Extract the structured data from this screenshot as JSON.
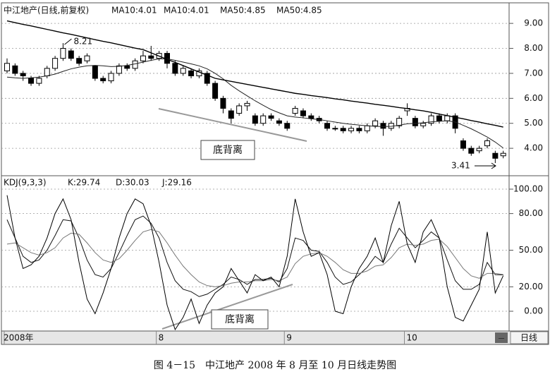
{
  "chart_data": [
    {
      "type": "candlestick",
      "title": "中江地产(日线,前复权)",
      "legend_labels": [
        "MA10:4.01",
        "MA10:4.01",
        "MA50:4.85",
        "MA50:4.85"
      ],
      "categories": [
        "2008年",
        null,
        null,
        null,
        null,
        null,
        null,
        null,
        null,
        null,
        null,
        null,
        null,
        null,
        null,
        null,
        null,
        null,
        null,
        "8",
        null,
        null,
        null,
        null,
        null,
        null,
        null,
        null,
        null,
        null,
        null,
        null,
        null,
        null,
        null,
        "9",
        null,
        null,
        null,
        null,
        null,
        null,
        null,
        null,
        null,
        null,
        null,
        null,
        null,
        null,
        "10",
        null,
        null,
        null,
        null,
        null,
        null,
        null,
        null,
        null,
        null,
        null,
        null
      ],
      "open": [
        7.1,
        7.3,
        7.0,
        6.8,
        6.6,
        6.9,
        7.2,
        7.6,
        7.9,
        7.6,
        7.5,
        7.3,
        6.8,
        6.7,
        7.0,
        7.3,
        7.2,
        7.5,
        7.7,
        7.6,
        7.8,
        7.4,
        7.0,
        7.1,
        6.9,
        7.0,
        6.6,
        6.0,
        5.5,
        5.4,
        5.7,
        5.3,
        5.0,
        5.3,
        5.1,
        5.0,
        5.4,
        5.5,
        5.3,
        5.2,
        5.0,
        4.8,
        4.8,
        4.7,
        4.8,
        4.7,
        4.9,
        5.0,
        4.8,
        4.9,
        5.5,
        5.2,
        4.9,
        5.0,
        5.3,
        5.1,
        5.3,
        4.3,
        4.0,
        3.9,
        4.1,
        3.8,
        3.7
      ],
      "high": [
        7.6,
        7.4,
        7.1,
        6.9,
        6.9,
        7.3,
        7.7,
        8.21,
        8.0,
        7.7,
        7.8,
        7.3,
        6.9,
        7.1,
        7.4,
        7.4,
        7.6,
        7.9,
        8.1,
        7.9,
        7.9,
        7.5,
        7.3,
        7.2,
        7.2,
        7.1,
        6.7,
        6.1,
        5.6,
        5.8,
        5.9,
        5.4,
        5.4,
        5.4,
        5.2,
        5.1,
        5.7,
        5.6,
        5.4,
        5.3,
        5.1,
        4.9,
        4.9,
        4.9,
        4.9,
        5.0,
        5.2,
        5.1,
        5.1,
        5.3,
        5.8,
        5.3,
        5.1,
        5.4,
        5.4,
        5.4,
        5.4,
        4.4,
        4.1,
        4.1,
        4.4,
        3.9,
        3.9
      ],
      "low": [
        7.0,
        6.9,
        6.7,
        6.5,
        6.5,
        6.8,
        7.1,
        7.5,
        7.5,
        7.3,
        7.4,
        6.7,
        6.6,
        6.6,
        6.9,
        7.1,
        7.1,
        7.4,
        7.5,
        7.5,
        7.2,
        6.9,
        6.9,
        6.8,
        6.8,
        6.5,
        5.9,
        5.4,
        5.0,
        5.3,
        5.5,
        4.9,
        4.9,
        5.1,
        4.9,
        4.7,
        5.3,
        5.2,
        5.1,
        5.0,
        4.7,
        4.7,
        4.6,
        4.6,
        4.6,
        4.6,
        4.8,
        4.5,
        4.7,
        4.8,
        5.3,
        4.8,
        4.8,
        4.9,
        5.0,
        5.0,
        4.6,
        3.9,
        3.7,
        3.8,
        4.0,
        3.41,
        3.6
      ],
      "close": [
        7.4,
        7.0,
        6.9,
        6.6,
        6.8,
        7.2,
        7.6,
        8.0,
        7.6,
        7.4,
        7.7,
        6.8,
        6.7,
        7.0,
        7.3,
        7.2,
        7.5,
        7.7,
        7.6,
        7.8,
        7.4,
        7.0,
        7.2,
        6.9,
        7.1,
        6.6,
        6.0,
        5.6,
        5.2,
        5.7,
        5.8,
        5.0,
        5.3,
        5.2,
        5.0,
        4.8,
        5.6,
        5.3,
        5.2,
        5.1,
        4.8,
        4.8,
        4.7,
        4.8,
        4.7,
        4.9,
        5.1,
        4.8,
        5.0,
        5.2,
        5.6,
        4.9,
        5.0,
        5.3,
        5.1,
        5.3,
        4.8,
        4.0,
        3.8,
        4.0,
        4.3,
        3.6,
        3.8
      ],
      "series": [
        {
          "color": "#222",
          "values": [
            6.85,
            6.82,
            6.8,
            6.82,
            6.85,
            6.9,
            6.97,
            7.08,
            7.18,
            7.25,
            7.3,
            7.32,
            7.3,
            7.27,
            7.28,
            7.32,
            7.38,
            7.45,
            7.52,
            7.58,
            7.58,
            7.52,
            7.45,
            7.38,
            7.3,
            7.18,
            7.0,
            6.78,
            6.52,
            6.3,
            6.1,
            5.9,
            5.72,
            5.55,
            5.42,
            5.3,
            5.25,
            5.22,
            5.18,
            5.15,
            5.1,
            5.05,
            5.0,
            4.96,
            4.93,
            4.9,
            4.88,
            4.87,
            4.88,
            4.92,
            4.98,
            5.0,
            5.02,
            5.06,
            5.08,
            5.1,
            5.05,
            4.92,
            4.78,
            4.62,
            4.45,
            4.25,
            4.01
          ]
        },
        {
          "color": "#000",
          "values": [
            9.1,
            9.03,
            8.96,
            8.9,
            8.83,
            8.76,
            8.69,
            8.62,
            8.56,
            8.49,
            8.42,
            8.35,
            8.28,
            8.22,
            8.15,
            8.08,
            8.01,
            7.95,
            7.82,
            7.69,
            7.56,
            7.44,
            7.31,
            7.18,
            7.05,
            6.93,
            6.8,
            6.74,
            6.68,
            6.62,
            6.56,
            6.5,
            6.44,
            6.38,
            6.32,
            6.26,
            6.2,
            6.16,
            6.11,
            6.07,
            6.03,
            5.98,
            5.94,
            5.89,
            5.85,
            5.81,
            5.76,
            5.72,
            5.68,
            5.63,
            5.59,
            5.54,
            5.5,
            5.44,
            5.37,
            5.31,
            5.24,
            5.18,
            5.11,
            5.05,
            4.98,
            4.92,
            4.85
          ]
        }
      ],
      "ylim": [
        2.93,
        9.71
      ],
      "yticks": [
        {
          "value": 4,
          "label": "4.00"
        },
        {
          "value": 5,
          "label": "5.00"
        },
        {
          "value": 6,
          "label": "6.00"
        },
        {
          "value": 7,
          "label": "7.00"
        },
        {
          "value": 8,
          "label": "8.00"
        },
        {
          "value": 9,
          "label": "9.00"
        }
      ],
      "grid": true,
      "annotations": [
        "8.21",
        "3.41",
        "底背离"
      ]
    },
    {
      "type": "line",
      "title": "KDJ(9,3,3)",
      "series": [
        {
          "name": "K:29.74",
          "color": "#111",
          "values": [
            75,
            60,
            45,
            40,
            42,
            50,
            62,
            75,
            74,
            60,
            42,
            30,
            28,
            35,
            48,
            62,
            75,
            78,
            72,
            60,
            40,
            25,
            18,
            16,
            12,
            14,
            18,
            22,
            28,
            26,
            22,
            26,
            26,
            27,
            24,
            35,
            60,
            58,
            50,
            49,
            40,
            28,
            22,
            24,
            30,
            36,
            45,
            40,
            55,
            68,
            60,
            52,
            58,
            65,
            60,
            42,
            25,
            18,
            18,
            22,
            40,
            30,
            29.74
          ]
        },
        {
          "name": "D:30.03",
          "color": "#777",
          "values": [
            55,
            56,
            52,
            48,
            46,
            48,
            52,
            60,
            64,
            63,
            56,
            48,
            42,
            40,
            43,
            50,
            58,
            65,
            67,
            65,
            56,
            46,
            37,
            30,
            24,
            21,
            20,
            21,
            23,
            24,
            24,
            25,
            25,
            26,
            25,
            28,
            39,
            45,
            47,
            48,
            45,
            40,
            34,
            31,
            31,
            33,
            37,
            38,
            44,
            52,
            55,
            54,
            55,
            58,
            59,
            53,
            44,
            35,
            29,
            27,
            31,
            31,
            30.03
          ]
        },
        {
          "name": "J:29.16",
          "color": "#000",
          "values": [
            95,
            60,
            35,
            38,
            45,
            60,
            80,
            92,
            75,
            40,
            10,
            -2,
            15,
            35,
            60,
            80,
            92,
            88,
            70,
            40,
            5,
            -15,
            -5,
            10,
            -10,
            5,
            15,
            20,
            35,
            25,
            15,
            30,
            25,
            28,
            20,
            45,
            92,
            65,
            45,
            48,
            30,
            0,
            -2,
            20,
            35,
            45,
            60,
            40,
            70,
            90,
            55,
            40,
            65,
            75,
            60,
            20,
            -5,
            -8,
            5,
            18,
            65,
            15,
            29.16
          ]
        }
      ],
      "ylim": [
        -15.6,
        110.4
      ],
      "yticks": [
        {
          "value": 0,
          "label": "0.00"
        },
        {
          "value": 20,
          "label": "20.00"
        },
        {
          "value": 50,
          "label": "50.00"
        },
        {
          "value": 80,
          "label": "80.00"
        },
        {
          "value": 100,
          "label": "100.00"
        }
      ],
      "grid": true,
      "annotations": [
        "底背离"
      ]
    }
  ],
  "period_button": "日线",
  "caption": "图 4－15　中江地产 2008 年 8 月至 10 月日线走势图"
}
